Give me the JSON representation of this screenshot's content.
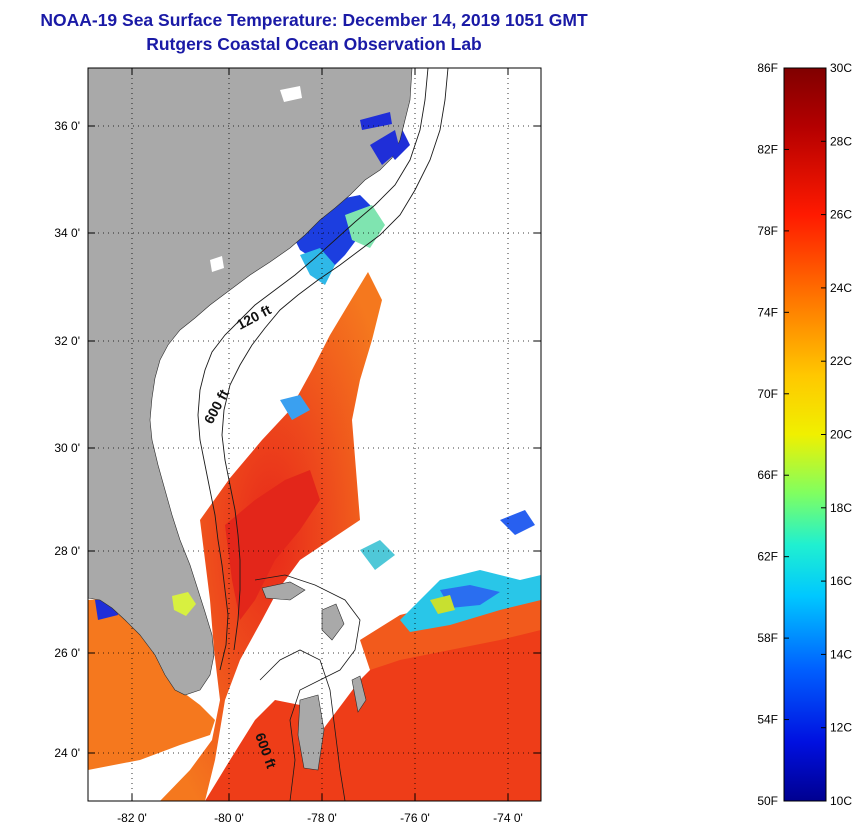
{
  "title": {
    "line1": "NOAA-19 Sea Surface Temperature:  December 14, 2019 1051 GMT",
    "line2": "Rutgers Coastal Ocean Observation Lab"
  },
  "map": {
    "lat_ticks": [
      "36 0'",
      "34 0'",
      "32 0'",
      "30 0'",
      "28 0'",
      "26 0'",
      "24 0'"
    ],
    "lon_ticks": [
      "-82 0'",
      "-80 0'",
      "-78 0'",
      "-76 0'",
      "-74 0'"
    ],
    "contour_labels": [
      "120 ft",
      "600 ft",
      "600 ft"
    ],
    "colors": {
      "land": "#a9a9a9",
      "cloud": "#ffffff",
      "warm": "#f03c14",
      "orange": "#f5781e"
    }
  },
  "colorbar": {
    "fahrenheit": [
      "86F",
      "82F",
      "78F",
      "74F",
      "70F",
      "66F",
      "62F",
      "58F",
      "54F",
      "50F"
    ],
    "celsius": [
      "30C",
      "28C",
      "26C",
      "24C",
      "22C",
      "20C",
      "18C",
      "16C",
      "14C",
      "12C",
      "10C"
    ],
    "range_c": [
      10,
      30
    ],
    "range_f": [
      50,
      86
    ]
  }
}
